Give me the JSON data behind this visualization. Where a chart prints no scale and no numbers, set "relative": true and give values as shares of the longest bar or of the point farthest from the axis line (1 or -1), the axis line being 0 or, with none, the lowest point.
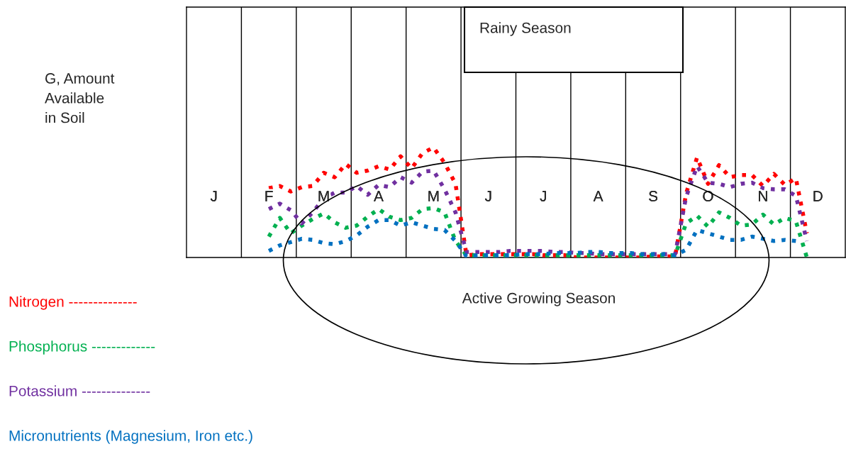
{
  "chart_data": {
    "type": "line",
    "relative": true,
    "categories": [
      null,
      null,
      "J",
      null,
      null,
      null,
      null,
      "F",
      null,
      null,
      null,
      null,
      "M",
      null,
      null,
      null,
      null,
      "A",
      null,
      null,
      null,
      null,
      "M",
      null,
      null,
      null,
      null,
      "J",
      null,
      null,
      null,
      null,
      "J",
      null,
      null,
      null,
      null,
      "A",
      null,
      null,
      null,
      null,
      "S",
      null,
      null,
      null,
      null,
      "O",
      null,
      null,
      null,
      null,
      "N",
      null,
      null,
      null,
      null,
      "D",
      null,
      null
    ],
    "grid": true,
    "line_style": "dotted",
    "annotations": [
      "Rainy Season",
      "Active Growing Season",
      "G, Amount\nAvailable\nin Soil"
    ],
    "series": [
      {
        "name": "Nitrogen --------------",
        "color": "#ff0000",
        "values": [
          null,
          null,
          null,
          null,
          null,
          null,
          null,
          0.63,
          0.65,
          0.6,
          0.64,
          0.65,
          0.77,
          0.73,
          0.85,
          0.77,
          0.79,
          0.83,
          0.8,
          0.92,
          0.81,
          0.95,
          1.0,
          0.86,
          0.67,
          0.02,
          0.03,
          0.03,
          0.03,
          0.03,
          0.03,
          0.03,
          0.02,
          0.02,
          0.02,
          0.0,
          0.0,
          0.0,
          0.0,
          0.0,
          0.0,
          0.0,
          0.01,
          0.01,
          0.01,
          0.58,
          0.91,
          0.67,
          0.84,
          0.73,
          0.75,
          0.75,
          0.65,
          0.76,
          0.66,
          0.72,
          0.22,
          null,
          null,
          null
        ]
      },
      {
        "name": "Phosphorus -------------",
        "color": "#00b050",
        "values": [
          null,
          null,
          null,
          null,
          null,
          null,
          null,
          0.19,
          0.36,
          0.22,
          0.29,
          0.35,
          0.4,
          0.32,
          0.27,
          0.29,
          0.37,
          0.44,
          0.37,
          0.34,
          0.36,
          0.44,
          0.45,
          0.41,
          0.15,
          0.02,
          0.02,
          0.02,
          0.02,
          0.02,
          0.02,
          0.02,
          0.02,
          0.02,
          0.02,
          0.02,
          0.02,
          0.02,
          0.02,
          0.02,
          0.02,
          0.02,
          0.02,
          0.02,
          0.02,
          0.31,
          0.38,
          0.28,
          0.41,
          0.36,
          0.29,
          0.3,
          0.39,
          0.3,
          0.36,
          0.33,
          0.0,
          null,
          null,
          null
        ]
      },
      {
        "name": "Potassium --------------",
        "color": "#7030a0",
        "values": [
          null,
          null,
          null,
          null,
          null,
          null,
          null,
          0.44,
          0.49,
          0.43,
          0.31,
          0.41,
          0.54,
          0.59,
          0.59,
          0.65,
          0.57,
          0.66,
          0.64,
          0.73,
          0.68,
          0.78,
          0.79,
          0.62,
          0.41,
          0.05,
          0.05,
          0.05,
          0.05,
          0.06,
          0.06,
          0.06,
          0.06,
          0.05,
          0.05,
          0.04,
          0.04,
          0.03,
          0.03,
          0.03,
          0.03,
          0.03,
          0.03,
          0.03,
          0.03,
          0.55,
          0.83,
          0.68,
          0.67,
          0.64,
          0.67,
          0.68,
          0.63,
          0.62,
          0.62,
          0.56,
          0.15,
          null,
          null,
          null
        ]
      },
      {
        "name": "Micronutrients (Magnesium, Iron etc.)",
        "color": "#0070c0",
        "values": [
          null,
          null,
          null,
          null,
          null,
          null,
          null,
          0.06,
          0.11,
          0.14,
          0.17,
          0.16,
          0.13,
          0.12,
          0.15,
          0.2,
          0.28,
          0.34,
          0.34,
          0.29,
          0.32,
          0.29,
          0.26,
          0.25,
          0.15,
          0.01,
          0.02,
          0.02,
          0.02,
          0.02,
          0.03,
          0.03,
          0.03,
          0.04,
          0.04,
          0.04,
          0.05,
          0.05,
          0.04,
          0.04,
          0.04,
          0.03,
          0.03,
          0.03,
          0.02,
          0.07,
          0.25,
          0.22,
          0.19,
          0.16,
          0.16,
          0.19,
          0.17,
          0.15,
          0.16,
          0.15,
          null,
          null,
          null,
          null
        ]
      }
    ]
  }
}
